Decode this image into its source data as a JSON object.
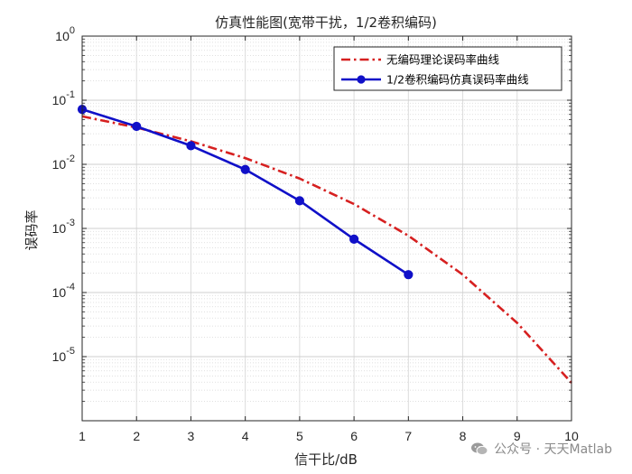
{
  "chart_data": {
    "type": "line",
    "title": "仿真性能图(宽带干扰，1/2卷积编码)",
    "xlabel": "信干比/dB",
    "ylabel": "误码率",
    "xlim": [
      1,
      10
    ],
    "ylim": [
      1e-06,
      1
    ],
    "yscale": "log",
    "grid": true,
    "legend_position": "top-right",
    "x_ticks": [
      "1",
      "2",
      "3",
      "4",
      "5",
      "6",
      "7",
      "8",
      "9",
      "10"
    ],
    "y_ticks": [
      {
        "base": "10",
        "exp": "0"
      },
      {
        "base": "10",
        "exp": "-1"
      },
      {
        "base": "10",
        "exp": "-2"
      },
      {
        "base": "10",
        "exp": "-3"
      },
      {
        "base": "10",
        "exp": "-4"
      },
      {
        "base": "10",
        "exp": "-5"
      }
    ],
    "series": [
      {
        "name": "无编码理论误码率曲线",
        "color": "#d62020",
        "style": "dash-dot",
        "marker": "none",
        "x": [
          1,
          2,
          3,
          4,
          5,
          6,
          7,
          8,
          9,
          10
        ],
        "y": [
          0.056,
          0.0375,
          0.0229,
          0.0125,
          0.006,
          0.0024,
          0.00077,
          0.00019,
          3.36e-05,
          3.9e-06
        ]
      },
      {
        "name": "1/2卷积编码仿真误码率曲线",
        "color": "#1010c8",
        "style": "solid",
        "marker": "circle",
        "x": [
          1,
          2,
          3,
          4,
          5,
          6,
          7
        ],
        "y": [
          0.072,
          0.039,
          0.0195,
          0.0083,
          0.0027,
          0.00068,
          0.00019
        ]
      }
    ]
  },
  "watermark": {
    "text": "公众号 · 天天Matlab",
    "icon": "wechat-icon"
  }
}
